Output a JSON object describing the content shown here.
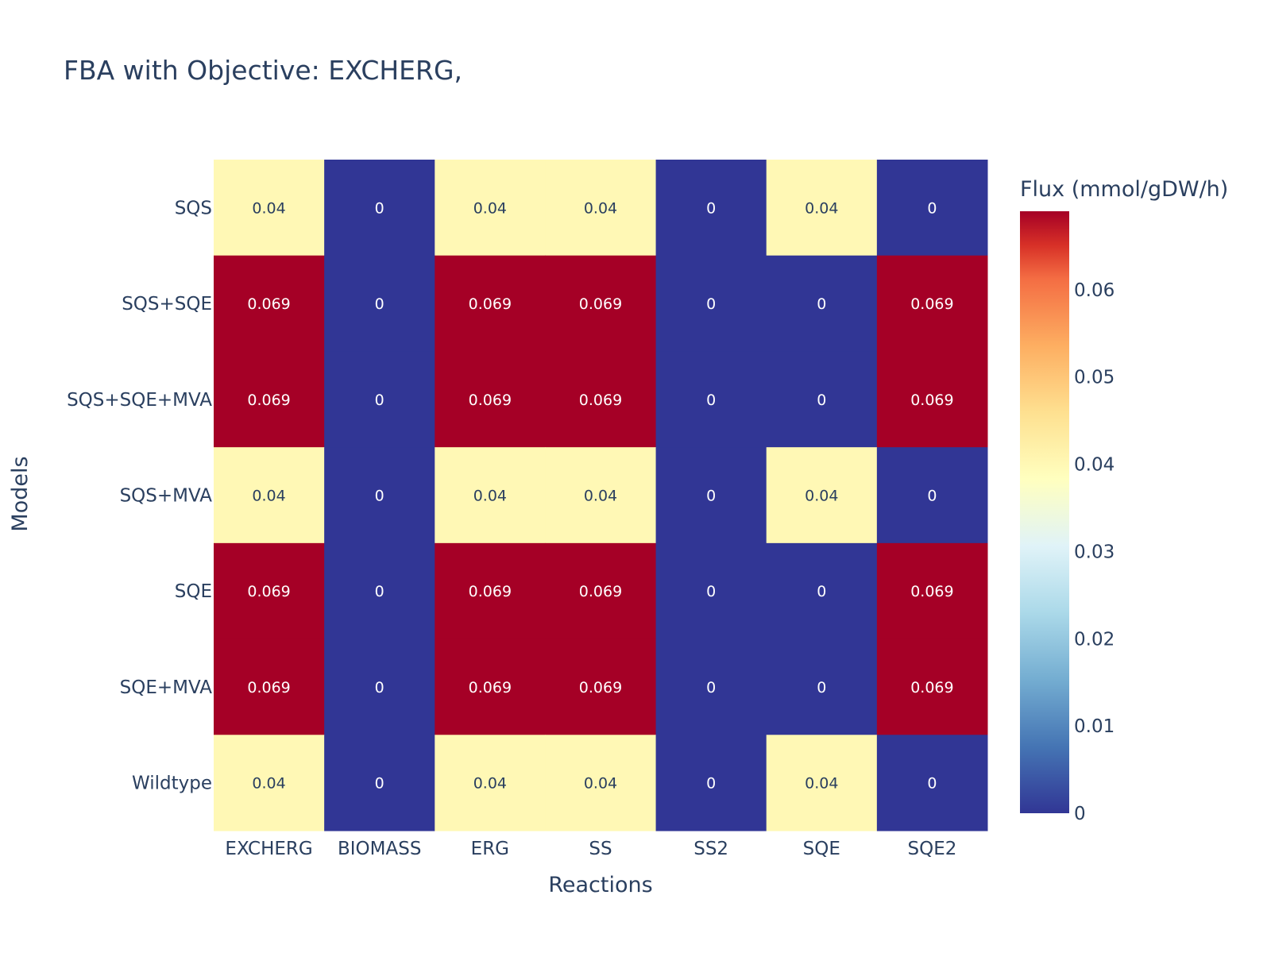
{
  "chart_data": {
    "type": "heatmap",
    "title": "FBA with Objective: EXCHERG,",
    "xlabel": "Reactions",
    "ylabel": "Models",
    "x_categories": [
      "EXCHERG",
      "BIOMASS",
      "ERG",
      "SS",
      "SS2",
      "SQE",
      "SQE2"
    ],
    "y_categories": [
      "SQS",
      "SQS+SQE",
      "SQS+SQE+MVA",
      "SQS+MVA",
      "SQE",
      "SQE+MVA",
      "Wildtype"
    ],
    "values": [
      [
        0.04,
        0,
        0.04,
        0.04,
        0,
        0.04,
        0
      ],
      [
        0.069,
        0,
        0.069,
        0.069,
        0,
        0,
        0.069
      ],
      [
        0.069,
        0,
        0.069,
        0.069,
        0,
        0,
        0.069
      ],
      [
        0.04,
        0,
        0.04,
        0.04,
        0,
        0.04,
        0
      ],
      [
        0.069,
        0,
        0.069,
        0.069,
        0,
        0,
        0.069
      ],
      [
        0.069,
        0,
        0.069,
        0.069,
        0,
        0,
        0.069
      ],
      [
        0.04,
        0,
        0.04,
        0.04,
        0,
        0.04,
        0
      ]
    ],
    "value_labels": [
      [
        "0.04",
        "0",
        "0.04",
        "0.04",
        "0",
        "0.04",
        "0"
      ],
      [
        "0.069",
        "0",
        "0.069",
        "0.069",
        "0",
        "0",
        "0.069"
      ],
      [
        "0.069",
        "0",
        "0.069",
        "0.069",
        "0",
        "0",
        "0.069"
      ],
      [
        "0.04",
        "0",
        "0.04",
        "0.04",
        "0",
        "0.04",
        "0"
      ],
      [
        "0.069",
        "0",
        "0.069",
        "0.069",
        "0",
        "0",
        "0.069"
      ],
      [
        "0.069",
        "0",
        "0.069",
        "0.069",
        "0",
        "0",
        "0.069"
      ],
      [
        "0.04",
        "0",
        "0.04",
        "0.04",
        "0",
        "0.04",
        "0"
      ]
    ],
    "zmin": 0,
    "zmax": 0.069,
    "colorscale": "RdYlBu reversed",
    "colors": {
      "low": "#313695",
      "mid_high": "#fee090",
      "high": "#a50026"
    },
    "colorbar": {
      "title": "Flux (mmol/gDW/h)",
      "ticks": [
        0,
        0.01,
        0.02,
        0.03,
        0.04,
        0.05,
        0.06
      ],
      "tick_labels": [
        "0",
        "0.01",
        "0.02",
        "0.03",
        "0.04",
        "0.05",
        "0.06"
      ]
    }
  }
}
